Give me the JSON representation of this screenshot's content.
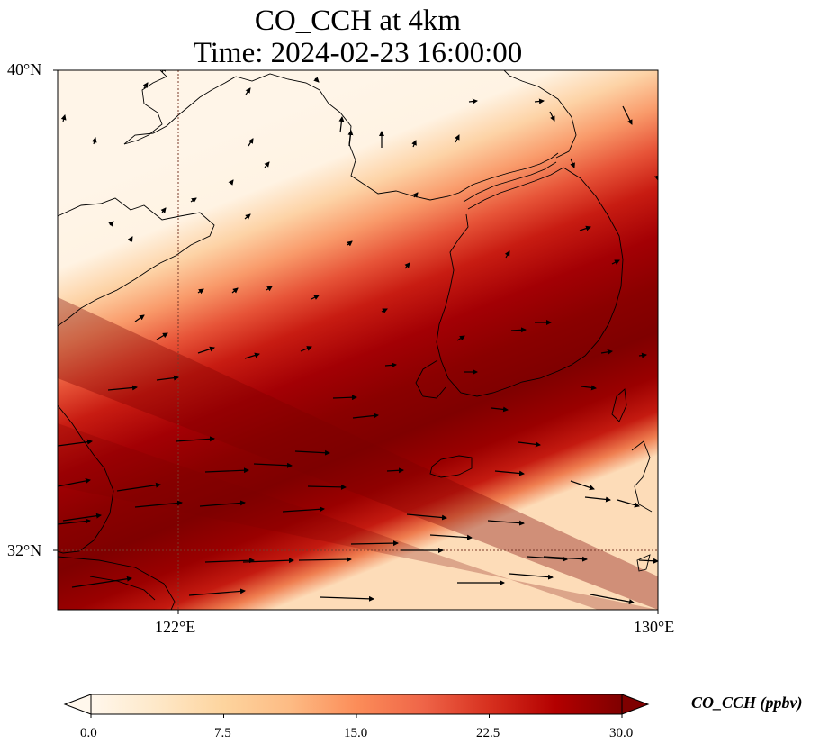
{
  "title": {
    "line1": "CO_CCH at 4km",
    "line2": "Time: 2024-02-23 16:00:00"
  },
  "map": {
    "extent": {
      "lon_min": 118.7,
      "lon_max": 130.0,
      "lat_min": 30.8,
      "lat_max": 40.0
    },
    "lat_ticks": [
      {
        "value": 40,
        "label": "40°N"
      },
      {
        "value": 32,
        "label": "32°N"
      }
    ],
    "lon_ticks": [
      {
        "value": 122,
        "label": "122°E"
      },
      {
        "value": 130,
        "label": "130°E"
      }
    ],
    "gridlines": "dotted",
    "field": "CO concentration band from west-southwest to east-southeast; high values (dark red) over the East China Sea and southern Yellow Sea, low values over Korea and northern Yellow Sea",
    "wind_vectors": "westerly to west-southwesterly flow, stronger in the south"
  },
  "colorbar": {
    "label": "CO_CCH (ppbv)",
    "min": 0.0,
    "max": 30.0,
    "ticks": [
      "0.0",
      "7.5",
      "15.0",
      "22.5",
      "30.0"
    ],
    "extend": "both",
    "colormap": "OrRd",
    "colors": [
      "#fff7ec",
      "#fee8c8",
      "#fdd49e",
      "#fdbb84",
      "#fc8d59",
      "#ef6548",
      "#d7301f",
      "#b30000",
      "#7f0000"
    ]
  }
}
